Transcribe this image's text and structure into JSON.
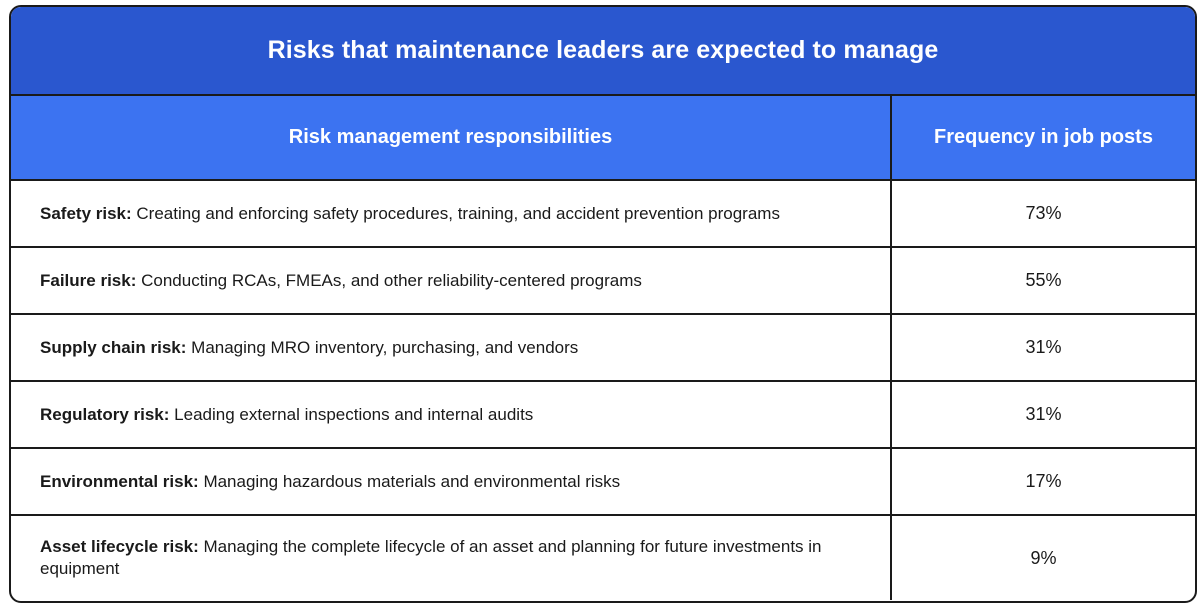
{
  "title": "Risks that maintenance leaders are expected to manage",
  "headers": {
    "responsibilities": "Risk management responsibilities",
    "frequency": "Frequency in job posts"
  },
  "rows": [
    {
      "label": "Safety risk:",
      "text": " Creating and enforcing safety procedures, training, and accident prevention programs",
      "frequency": "73%"
    },
    {
      "label": "Failure risk:",
      "text": " Conducting RCAs, FMEAs, and other reliability-centered programs",
      "frequency": "55%"
    },
    {
      "label": "Supply chain risk:",
      "text": " Managing MRO inventory, purchasing, and vendors",
      "frequency": "31%"
    },
    {
      "label": "Regulatory risk:",
      "text": " Leading external inspections and internal audits",
      "frequency": "31%"
    },
    {
      "label": "Environmental risk:",
      "text": " Managing hazardous materials and environmental risks",
      "frequency": "17%"
    },
    {
      "label": "Asset lifecycle risk:",
      "text": " Managing the complete lifecycle of an asset and planning for future investments in equipment",
      "frequency": "9%"
    }
  ],
  "colors": {
    "title_bg": "#2a57cf",
    "header_bg": "#3c73f1",
    "border": "#1a1a1a"
  }
}
